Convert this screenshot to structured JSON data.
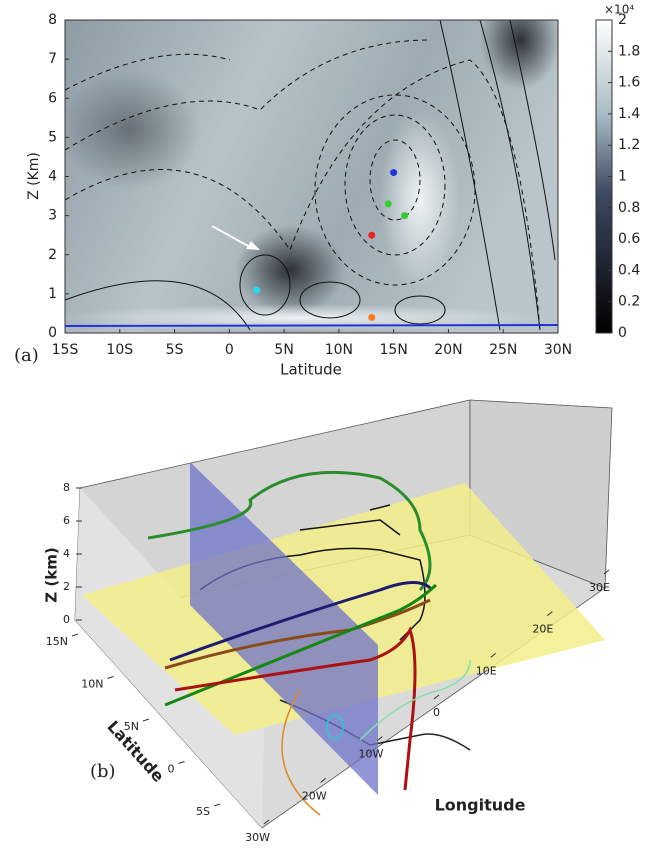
{
  "chart_data": [
    {
      "type": "contour",
      "panel_label": "(a)",
      "xlabel": "Latitude",
      "ylabel": "Z (Km)",
      "xlim": [
        -15,
        30
      ],
      "ylim": [
        0,
        8
      ],
      "xticks": [
        {
          "value": -15,
          "label": "15S"
        },
        {
          "value": -10,
          "label": "10S"
        },
        {
          "value": -5,
          "label": "5S"
        },
        0,
        {
          "value": 5,
          "label": "5N"
        },
        {
          "value": 10,
          "label": "10N"
        },
        {
          "value": 15,
          "label": "15N"
        },
        {
          "value": 20,
          "label": "20N"
        },
        {
          "value": 25,
          "label": "25N"
        },
        {
          "value": 30,
          "label": "30N"
        }
      ],
      "yticks": [
        0,
        1,
        2,
        3,
        4,
        5,
        6,
        7,
        8
      ],
      "clim": [
        0,
        2
      ],
      "cticks": [
        0,
        0.2,
        0.4,
        0.6,
        0.8,
        1,
        1.2,
        1.4,
        1.6,
        1.8,
        2
      ],
      "cscale_label": "×10⁴",
      "x": [
        2.5,
        13,
        14.5,
        15,
        16,
        13
      ],
      "values": [
        1.1,
        2.5,
        3.3,
        4.1,
        3.0,
        0.4
      ],
      "colors": [
        "#22ddee",
        "#ee2222",
        "#33cc33",
        "#2233dd",
        "#33cc33",
        "#ff7722"
      ]
    },
    {
      "type": "trajectory3d",
      "panel_label": "(b)",
      "xlabel": "Longitude",
      "ylabel": "Latitude",
      "zlabel": "Z (km)",
      "xlim": [
        -30,
        30
      ],
      "ylim": [
        -5,
        15
      ],
      "zlim": [
        0,
        8
      ],
      "xticks": [
        {
          "value": -30,
          "label": "30W"
        },
        {
          "value": -20,
          "label": "20W"
        },
        {
          "value": -10,
          "label": "10W"
        },
        0,
        {
          "value": 10,
          "label": "10E"
        },
        {
          "value": 20,
          "label": "20E"
        },
        {
          "value": 30,
          "label": "30E"
        }
      ],
      "yticks": [
        {
          "value": 15,
          "label": "15N"
        },
        {
          "value": 10,
          "label": "10N"
        },
        {
          "value": 5,
          "label": "5N"
        },
        0,
        {
          "value": -5,
          "label": "5S"
        }
      ],
      "zticks": [
        0,
        2,
        4,
        6,
        8
      ]
    }
  ]
}
